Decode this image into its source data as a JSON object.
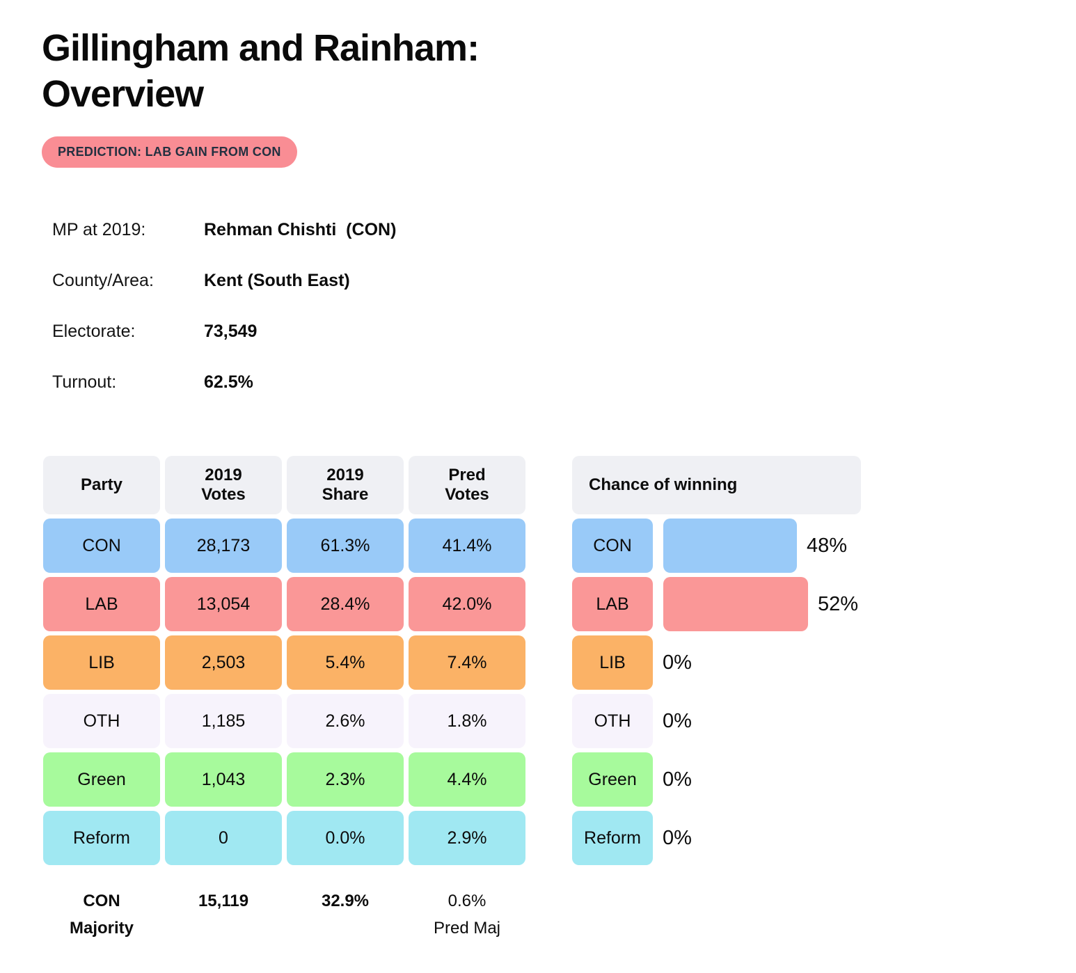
{
  "page": {
    "title_line1": "Gillingham and Rainham:",
    "title_line2": "Overview",
    "prediction_badge": "PREDICTION: LAB GAIN FROM CON"
  },
  "info_rows": [
    {
      "label": "MP at 2019:",
      "value": "Rehman Chishti  (CON)"
    },
    {
      "label": "County/Area:",
      "value": "Kent (South East)"
    },
    {
      "label": "Electorate:",
      "value": "73,549"
    },
    {
      "label": "Turnout:",
      "value": "62.5%"
    }
  ],
  "results_table": {
    "headers": [
      {
        "line1": "Party",
        "line2": ""
      },
      {
        "line1": "2019",
        "line2": "Votes"
      },
      {
        "line1": "2019",
        "line2": "Share"
      },
      {
        "line1": "Pred",
        "line2": "Votes"
      }
    ],
    "rows": [
      {
        "party": "CON",
        "votes": "28,173",
        "share": "61.3%",
        "pred": "41.4%",
        "color": "#99CAF8"
      },
      {
        "party": "LAB",
        "votes": "13,054",
        "share": "28.4%",
        "pred": "42.0%",
        "color": "#FA9797"
      },
      {
        "party": "LIB",
        "votes": "2,503",
        "share": "5.4%",
        "pred": "7.4%",
        "color": "#FBB266"
      },
      {
        "party": "OTH",
        "votes": "1,185",
        "share": "2.6%",
        "pred": "1.8%",
        "color": "#F7F3FC"
      },
      {
        "party": "Green",
        "votes": "1,043",
        "share": "2.3%",
        "pred": "4.4%",
        "color": "#A7FA9C"
      },
      {
        "party": "Reform",
        "votes": "0",
        "share": "0.0%",
        "pred": "2.9%",
        "color": "#A0E8F2"
      }
    ],
    "footer": {
      "label_line1": "CON",
      "label_line2": "Majority",
      "votes": "15,119",
      "share": "32.9%",
      "pred": "0.6%",
      "pred_label": "Pred Maj"
    }
  },
  "chance_panel": {
    "title": "Chance of winning",
    "rows": [
      {
        "party": "CON",
        "value": 48,
        "label": "48%",
        "color": "#99CAF8"
      },
      {
        "party": "LAB",
        "value": 52,
        "label": "52%",
        "color": "#FA9797"
      },
      {
        "party": "LIB",
        "value": 0,
        "label": "0%",
        "color": "#FBB266"
      },
      {
        "party": "OTH",
        "value": 0,
        "label": "0%",
        "color": "#F7F3FC"
      },
      {
        "party": "Green",
        "value": 0,
        "label": "0%",
        "color": "#A7FA9C"
      },
      {
        "party": "Reform",
        "value": 0,
        "label": "0%",
        "color": "#A0E8F2"
      }
    ]
  },
  "colors": {
    "header_bg": "#EFF0F4",
    "badge_bg": "#F98D94",
    "badge_text": "#233040"
  },
  "chart_data": [
    {
      "type": "table",
      "title": "Gillingham and Rainham: Overview — results table",
      "columns": [
        "Party",
        "2019 Votes",
        "2019 Share",
        "Pred Votes"
      ],
      "rows": [
        [
          "CON",
          28173,
          "61.3%",
          "41.4%"
        ],
        [
          "LAB",
          13054,
          "28.4%",
          "42.0%"
        ],
        [
          "LIB",
          2503,
          "5.4%",
          "7.4%"
        ],
        [
          "OTH",
          1185,
          "2.6%",
          "1.8%"
        ],
        [
          "Green",
          1043,
          "2.3%",
          "4.4%"
        ],
        [
          "Reform",
          0,
          "0.0%",
          "2.9%"
        ]
      ],
      "footer": [
        "CON Majority",
        "15,119",
        "32.9%",
        "0.6% Pred Maj"
      ]
    },
    {
      "type": "bar",
      "orientation": "horizontal",
      "title": "Chance of winning",
      "categories": [
        "CON",
        "LAB",
        "LIB",
        "OTH",
        "Green",
        "Reform"
      ],
      "values": [
        48,
        52,
        0,
        0,
        0,
        0
      ],
      "value_labels": [
        "48%",
        "52%",
        "0%",
        "0%",
        "0%",
        "0%"
      ],
      "xlim": [
        0,
        100
      ],
      "grid": false,
      "legend": false
    }
  ]
}
